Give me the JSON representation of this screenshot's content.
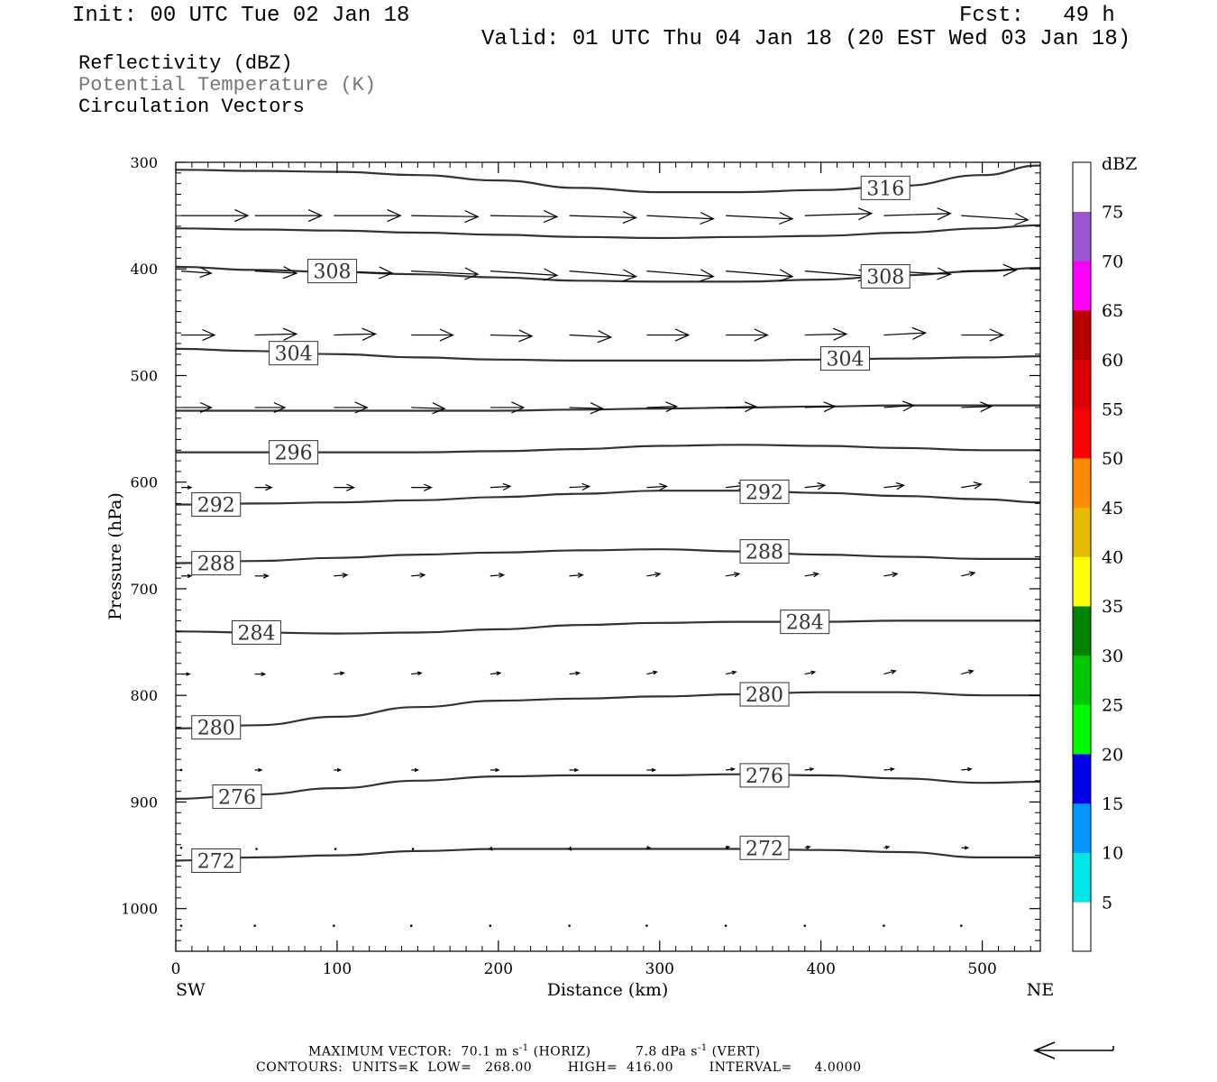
{
  "header": {
    "init": "Init: 00 UTC Tue 02 Jan 18",
    "fcst": "Fcst:   49 h",
    "valid": "Valid: 01 UTC Thu 04 Jan 18 (20 EST Wed 03 Jan 18)",
    "field1": "Reflectivity (dBZ)",
    "field2": "Potential Temperature (K)",
    "field3": "Circulation Vectors"
  },
  "colors": {
    "field2_text": "#777777",
    "contour": "#333333"
  },
  "chart_data": {
    "type": "line",
    "xlabel": "Distance (km)",
    "ylabel": "Pressure (hPa)",
    "xlim": [
      0,
      536
    ],
    "ylim": [
      300,
      1040
    ],
    "y_inverted": true,
    "x_ticks": [
      0,
      100,
      200,
      300,
      400,
      500
    ],
    "y_ticks": [
      300,
      400,
      500,
      600,
      700,
      800,
      900,
      1000
    ],
    "x_left_label": "SW",
    "x_right_label": "NE",
    "contour_x": [
      0,
      50,
      100,
      150,
      200,
      250,
      300,
      350,
      400,
      450,
      500,
      536
    ],
    "contours": [
      {
        "level": "272",
        "p": [
          955,
          952,
          950,
          946,
          944,
          944,
          944,
          944,
          945,
          947,
          952,
          952
        ],
        "labels": [
          [
            25,
            955
          ],
          [
            365,
            943
          ]
        ]
      },
      {
        "level": "276",
        "p": [
          897,
          893,
          887,
          880,
          876,
          875,
          875,
          874,
          875,
          878,
          882,
          881
        ],
        "labels": [
          [
            38,
            895
          ],
          [
            365,
            875
          ]
        ]
      },
      {
        "level": "280",
        "p": [
          831,
          828,
          820,
          811,
          805,
          803,
          801,
          799,
          797,
          797,
          800,
          800
        ],
        "labels": [
          [
            25,
            830
          ],
          [
            365,
            799
          ]
        ]
      },
      {
        "level": "284",
        "p": [
          740,
          741,
          742,
          741,
          738,
          734,
          732,
          731,
          731,
          730,
          730,
          730
        ],
        "labels": [
          [
            50,
            741
          ],
          [
            390,
            731
          ]
        ]
      },
      {
        "level": "288",
        "p": [
          676,
          674,
          671,
          668,
          666,
          664,
          663,
          665,
          668,
          670,
          672,
          672
        ],
        "labels": [
          [
            25,
            676
          ],
          [
            365,
            665
          ]
        ]
      },
      {
        "level": "292",
        "p": [
          621,
          620,
          619,
          617,
          614,
          611,
          608,
          608,
          610,
          613,
          616,
          619
        ],
        "labels": [
          [
            25,
            621
          ],
          [
            365,
            609
          ]
        ]
      },
      {
        "level": "296",
        "p": [
          572,
          572,
          572,
          572,
          571,
          569,
          566,
          565,
          566,
          568,
          570,
          570
        ],
        "labels": [
          [
            73,
            572
          ]
        ]
      },
      {
        "level": "300",
        "p": [
          533,
          533,
          533,
          533,
          533,
          532,
          531,
          530,
          529,
          528,
          528,
          528
        ],
        "labels": []
      },
      {
        "level": "304",
        "p": [
          475,
          477,
          480,
          483,
          485,
          486,
          486,
          486,
          485,
          484,
          483,
          482
        ],
        "labels": [
          [
            73,
            479
          ],
          [
            415,
            484
          ]
        ]
      },
      {
        "level": "308",
        "p": [
          398,
          401,
          403,
          405,
          408,
          411,
          412,
          412,
          410,
          406,
          402,
          399
        ],
        "labels": [
          [
            97,
            402
          ],
          [
            440,
            407
          ]
        ]
      },
      {
        "level": "312",
        "p": [
          362,
          363,
          364,
          366,
          368,
          370,
          371,
          370,
          369,
          366,
          362,
          359
        ],
        "labels": []
      },
      {
        "level": "316",
        "p": [
          307,
          308,
          309,
          312,
          317,
          324,
          328,
          328,
          326,
          322,
          312,
          303
        ],
        "labels": [
          [
            440,
            324
          ]
        ]
      }
    ],
    "vectors": {
      "x": [
        0,
        49,
        98,
        146,
        195,
        244,
        292,
        341,
        390,
        439,
        487
      ],
      "rows": [
        {
          "p": 350,
          "u": [
            40,
            40,
            40,
            40,
            40,
            40,
            40,
            40,
            40,
            40,
            40
          ],
          "w": [
            0,
            0,
            0,
            1,
            1,
            2,
            3,
            3,
            -2,
            -2,
            4
          ]
        },
        {
          "p": 402,
          "u": [
            18,
            25,
            35,
            40,
            40,
            40,
            40,
            40,
            40,
            40,
            33
          ],
          "w": [
            2,
            2,
            2,
            3,
            4,
            5,
            5,
            5,
            5,
            3,
            -1
          ]
        },
        {
          "p": 462,
          "u": [
            20,
            25,
            25,
            25,
            25,
            25,
            25,
            25,
            25,
            25,
            25
          ],
          "w": [
            0,
            -1,
            -1,
            0,
            1,
            2,
            0,
            0,
            -1,
            -2,
            0
          ]
        },
        {
          "p": 530,
          "u": [
            18,
            18,
            20,
            20,
            20,
            20,
            18,
            18,
            18,
            18,
            18
          ],
          "w": [
            0,
            0,
            0,
            1,
            0,
            1,
            -1,
            -1,
            -1,
            -2,
            -1
          ]
        },
        {
          "p": 605,
          "u": [
            6,
            10,
            12,
            12,
            12,
            12,
            12,
            12,
            12,
            12,
            12
          ],
          "w": [
            0,
            0,
            0,
            0,
            -1,
            -1,
            -1,
            -2,
            -2,
            -2,
            -3
          ]
        },
        {
          "p": 688,
          "u": [
            6,
            8,
            8,
            8,
            8,
            8,
            8,
            8,
            8,
            8,
            8
          ],
          "w": [
            0,
            0,
            -1,
            -1,
            -1,
            -1,
            -2,
            -2,
            -2,
            -2,
            -3
          ]
        },
        {
          "p": 780,
          "u": [
            5,
            6,
            6,
            6,
            6,
            6,
            6,
            6,
            6,
            7,
            7
          ],
          "w": [
            0,
            0,
            -1,
            -1,
            -1,
            -1,
            -2,
            -2,
            -2,
            -3,
            -3
          ]
        },
        {
          "p": 870,
          "u": [
            0,
            4,
            4,
            4,
            5,
            5,
            5,
            5,
            5,
            6,
            6
          ],
          "w": [
            0,
            0,
            0,
            0,
            0,
            0,
            0,
            -1,
            -1,
            -1,
            -1
          ]
        },
        {
          "p": 943,
          "u": [
            0,
            1,
            1,
            1,
            1,
            1,
            2,
            2,
            3,
            3,
            4
          ],
          "w": [
            0,
            1,
            1,
            1,
            2,
            2,
            0,
            -1,
            -1,
            -1,
            0
          ]
        },
        {
          "p": 1015,
          "u": [
            0,
            0,
            0,
            0,
            0,
            0,
            0,
            0,
            0,
            0,
            0
          ],
          "w": [
            1,
            1,
            1,
            1,
            1,
            1,
            1,
            1,
            1,
            1,
            1
          ]
        }
      ]
    },
    "colorbar": {
      "title": "dBZ",
      "levels": [
        "5",
        "10",
        "15",
        "20",
        "25",
        "30",
        "35",
        "40",
        "45",
        "50",
        "55",
        "60",
        "65",
        "70",
        "75"
      ],
      "colors": [
        "#ffffff",
        "#00e5e5",
        "#0096ff",
        "#0000e8",
        "#00fa00",
        "#00c800",
        "#008400",
        "#ffff00",
        "#e6bc00",
        "#ff8c00",
        "#ff0000",
        "#dc0000",
        "#b90000",
        "#ff00ff",
        "#9b55d2",
        "#ffffff"
      ]
    }
  },
  "footer": {
    "line1_prefix": "MAXIMUM VECTOR:  70.1 m s",
    "line1_mid": " (HORIZ)          7.8 dPa s",
    "line1_suffix": " (VERT)",
    "sup": "-1",
    "line2": "CONTOURS:  UNITS=K  LOW=   268.00        HIGH=  416.00        INTERVAL=     4.0000"
  }
}
